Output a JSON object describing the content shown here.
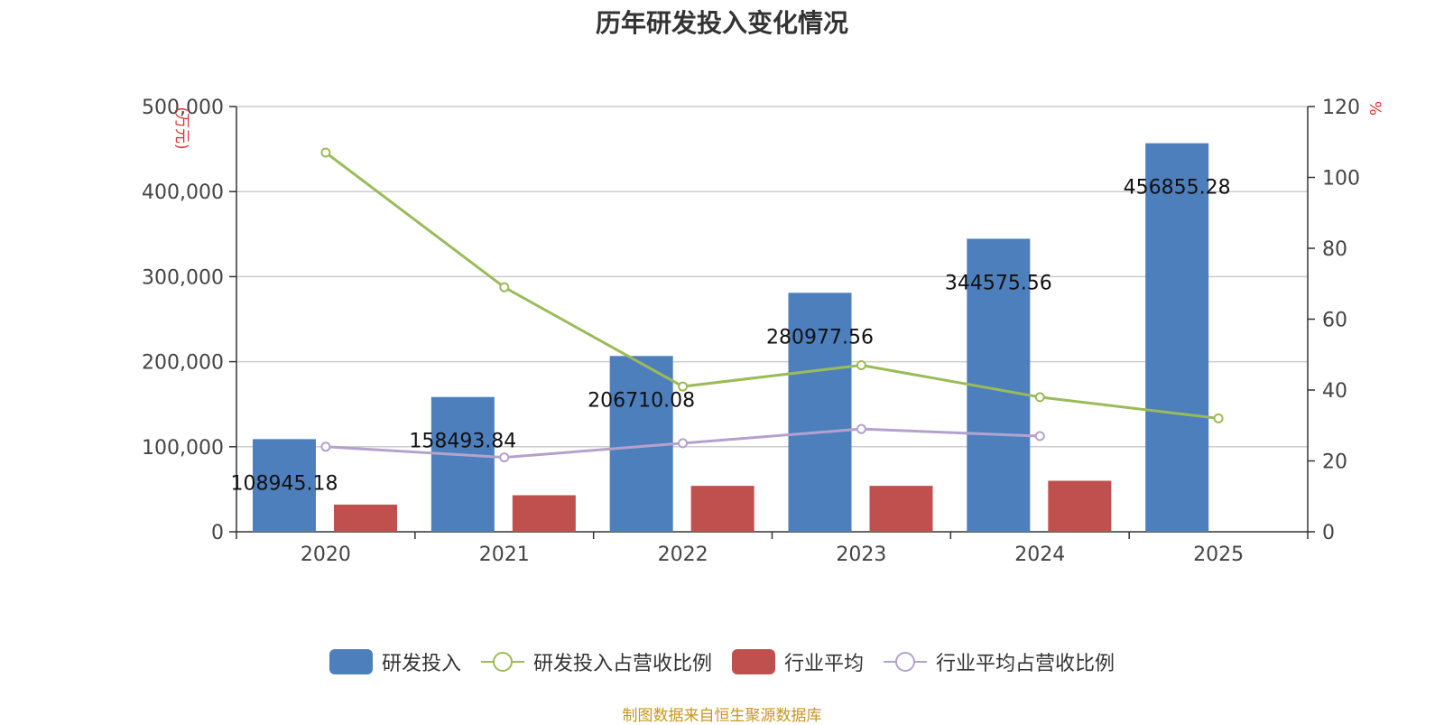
{
  "chart_data": {
    "type": "bar",
    "title": "历年研发投入变化情况",
    "categories": [
      "2020",
      "2021",
      "2022",
      "2023",
      "2024",
      "2025"
    ],
    "y_left": {
      "unit": "(万元)",
      "ticks": [
        "0",
        "100,000",
        "200,000",
        "300,000",
        "400,000",
        "500,000"
      ],
      "range": [
        0,
        500000
      ]
    },
    "y_right": {
      "unit": "%",
      "ticks": [
        "0",
        "20",
        "40",
        "60",
        "80",
        "100",
        "120"
      ],
      "range": [
        0,
        120
      ]
    },
    "grid": true,
    "legend_position": "bottom",
    "series": [
      {
        "name": "研发投入",
        "type": "bar",
        "axis": "left",
        "color": "#4e7fbd",
        "values": [
          108945.18,
          158493.84,
          206710.08,
          280977.56,
          344575.56,
          456855.28
        ],
        "labels": [
          "108945.18",
          "158493.84",
          "206710.08",
          "280977.56",
          "344575.56",
          "456855.28"
        ]
      },
      {
        "name": "研发投入占营收比例",
        "type": "line",
        "axis": "right",
        "color": "#9bbb59",
        "values": [
          107,
          69,
          41,
          47,
          38,
          32
        ]
      },
      {
        "name": "行业平均",
        "type": "bar",
        "axis": "left",
        "color": "#c0504d",
        "values": [
          32000,
          43000,
          54000,
          54000,
          60000,
          null
        ]
      },
      {
        "name": "行业平均占营收比例",
        "type": "line",
        "axis": "right",
        "color": "#b3a2cc",
        "values": [
          24,
          21,
          25,
          29,
          27,
          null
        ]
      }
    ]
  },
  "source_note": "制图数据来自恒生聚源数据库"
}
